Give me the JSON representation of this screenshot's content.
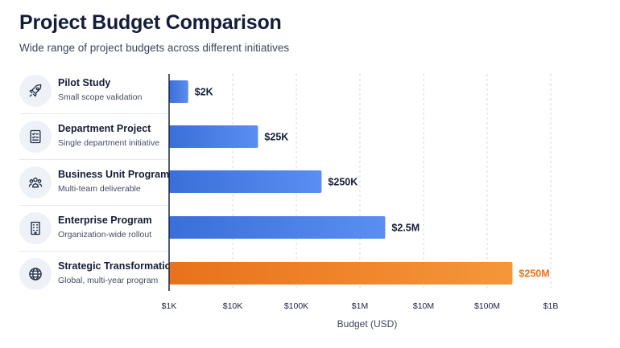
{
  "header": {
    "title": "Project Budget Comparison",
    "subtitle": "Wide range of project budgets across different initiatives"
  },
  "rows": [
    {
      "name": "Pilot Study",
      "desc": "Small scope validation",
      "icon": "rocket-icon"
    },
    {
      "name": "Department Project",
      "desc": "Single department initiative",
      "icon": "checklist-icon"
    },
    {
      "name": "Business Unit Program",
      "desc": "Multi-team deliverable",
      "icon": "team-icon"
    },
    {
      "name": "Enterprise Program",
      "desc": "Organization-wide rollout",
      "icon": "building-icon"
    },
    {
      "name": "Strategic Transformation",
      "desc": "Global, multi-year program",
      "icon": "globe-icon"
    }
  ],
  "colors": {
    "bar_blue_start": "#3a6fd8",
    "bar_blue_end": "#5b8ef0",
    "bar_highlight_start": "#e8721c",
    "bar_highlight_end": "#f5963a",
    "highlight_text": "#e8721c"
  },
  "chart_data": {
    "type": "bar",
    "orientation": "horizontal",
    "categories": [
      "Pilot Study",
      "Department Project",
      "Business Unit Program",
      "Enterprise Program",
      "Strategic Transformation"
    ],
    "values": [
      2000,
      25000,
      250000,
      2500000,
      250000000
    ],
    "value_labels": [
      "$2K",
      "$25K",
      "$250K",
      "$2.5M",
      "$250M"
    ],
    "highlight_index": 4,
    "xscale": "log",
    "xlim": [
      1000,
      1000000000
    ],
    "xticks": [
      1000,
      10000,
      100000,
      1000000,
      10000000,
      100000000,
      1000000000
    ],
    "xtick_labels": [
      "$1K",
      "$10K",
      "$100K",
      "$1M",
      "$10M",
      "$100M",
      "$1B"
    ],
    "xlabel": "Budget (USD)",
    "grid": "vertical dashed"
  }
}
